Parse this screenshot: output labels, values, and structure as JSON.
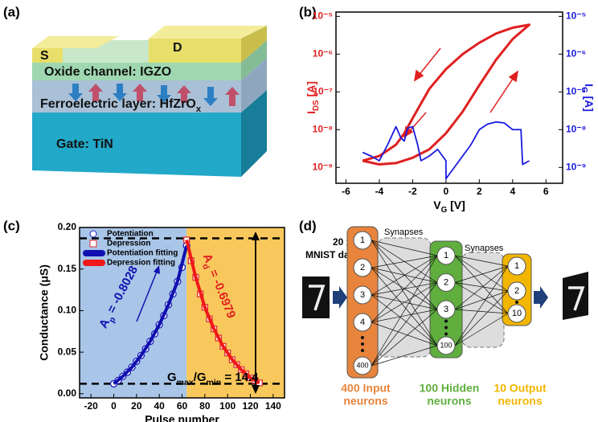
{
  "panels": [
    "(a)",
    "(b)",
    "(c)",
    "(d)"
  ],
  "device": {
    "source": "S",
    "drain": "D",
    "channel": "Oxide channel: IGZO",
    "ferroelectric": [
      "Ferroelectric layer: HfZrO",
      "x"
    ],
    "gate": "Gate: TiN"
  },
  "chart_data": [
    {
      "type": "line",
      "ylog": true,
      "y2log": true,
      "xlabel": [
        "V",
        "G",
        " [V]"
      ],
      "ylabel": [
        "I",
        "DS",
        " [A]"
      ],
      "y2label": [
        "I",
        "G",
        " [A]"
      ],
      "ylabel_color": "#e02020",
      "y2label_color": "#1a1ae0",
      "xlim": [
        -6.6,
        7
      ],
      "xticks": [
        -6,
        -4,
        -2,
        0,
        2,
        4,
        6
      ],
      "ylim": [
        3.8e-10,
        1.3e-05
      ],
      "yticks": [
        {
          "value": 1e-09,
          "label": "10⁻⁹"
        },
        {
          "value": 1e-08,
          "label": "10⁻⁸"
        },
        {
          "value": 1e-07,
          "label": "10⁻⁷"
        },
        {
          "value": 1e-06,
          "label": "10⁻⁶"
        },
        {
          "value": 1e-05,
          "label": "10⁻⁵"
        }
      ],
      "y2lim": [
        3.8e-10,
        1.3e-05
      ],
      "y2ticks": [
        {
          "value": 1e-09,
          "label": "10⁻⁹"
        },
        {
          "value": 1e-08,
          "label": "10⁻⁸"
        },
        {
          "value": 1e-07,
          "label": "10⁻⁷"
        },
        {
          "value": 1e-06,
          "label": "10⁻⁶"
        },
        {
          "value": 1e-05,
          "label": "10⁻⁵"
        }
      ],
      "series": [
        {
          "color": "#e02020",
          "x": [
            -5,
            -4,
            -3,
            -2,
            -1,
            0,
            1,
            2,
            3,
            4,
            5,
            4,
            3,
            2,
            1,
            0,
            -1,
            -2,
            -2.5,
            -3,
            -4,
            -5
          ],
          "values": [
            1.5e-09,
            1.2e-09,
            1.3e-09,
            1.8e-09,
            3e-09,
            8e-09,
            3e-08,
            1.5e-07,
            7e-07,
            2.5e-06,
            6e-06,
            5e-06,
            3.5e-06,
            2e-06,
            1e-06,
            4e-07,
            1.2e-07,
            2e-08,
            8e-09,
            4e-09,
            2e-09,
            1.5e-09
          ]
        },
        {
          "color": "#1a1ae0",
          "axis": "y2",
          "x": [
            -5,
            -4.5,
            -4,
            -3.5,
            -3,
            -2.7,
            -2.5,
            -2.3,
            -2,
            -1.7,
            -1.5,
            -1,
            -0.5,
            0,
            0,
            0.5,
            1,
            1.5,
            2,
            2.5,
            3,
            3.5,
            4,
            4.5,
            4.6,
            5
          ],
          "values": [
            2.5e-09,
            2e-09,
            1.5e-09,
            4e-09,
            1.2e-08,
            6e-09,
            5e-09,
            1.1e-08,
            1.2e-08,
            4e-09,
            1.5e-09,
            2e-09,
            3e-09,
            1.5e-09,
            5e-10,
            1e-09,
            2e-09,
            4e-09,
            1e-08,
            1.4e-08,
            1.6e-08,
            1.5e-08,
            1e-08,
            1e-08,
            1.2e-09,
            1.5e-09
          ]
        }
      ]
    },
    {
      "type": "scatter",
      "xlabel": "Pulse number",
      "ylabel": "Conductance (μS)",
      "xlim": [
        -30,
        150
      ],
      "xticks": [
        -20,
        0,
        20,
        40,
        60,
        80,
        100,
        120,
        140
      ],
      "ylim": [
        -0.005,
        0.2
      ],
      "yticks": [
        {
          "value": 0,
          "label": "0.00"
        },
        0.05,
        {
          "value": 0.1,
          "label": "0.10"
        },
        0.15,
        {
          "value": 0.2,
          "label": "0.20"
        }
      ],
      "regions": [
        {
          "xlim": [
            -30,
            64
          ],
          "color": "#a9c6e8"
        },
        {
          "xlim": [
            64,
            150
          ],
          "color": "#f8c85c"
        }
      ],
      "hlines": [
        0.187,
        0.012
      ],
      "annotations": [
        [
          "A",
          "p",
          " = -0.8028"
        ],
        [
          "A",
          "d",
          " = -0.6979"
        ],
        [
          "G",
          "max",
          "/G",
          "min",
          " = 14.4"
        ]
      ],
      "legend": "upper left",
      "series": [
        {
          "name": "Potentiation",
          "color": "#2020c0",
          "marker": "circle",
          "x": [
            0,
            4,
            8,
            12,
            16,
            20,
            24,
            28,
            32,
            36,
            40,
            44,
            48,
            52,
            56,
            60,
            64
          ],
          "values": [
            0.012,
            0.016,
            0.021,
            0.026,
            0.032,
            0.039,
            0.046,
            0.054,
            0.063,
            0.072,
            0.083,
            0.094,
            0.107,
            0.12,
            0.135,
            0.152,
            0.178
          ]
        },
        {
          "name": "Depression",
          "color": "#e03030",
          "marker": "square",
          "x": [
            64,
            68,
            72,
            76,
            80,
            84,
            88,
            92,
            96,
            100,
            104,
            108,
            112,
            116,
            120,
            124,
            128
          ],
          "values": [
            0.185,
            0.16,
            0.14,
            0.12,
            0.104,
            0.09,
            0.078,
            0.067,
            0.057,
            0.049,
            0.041,
            0.035,
            0.029,
            0.024,
            0.019,
            0.016,
            0.013
          ]
        },
        {
          "name": "Potentiation fitting",
          "color": "#1010b0",
          "marker": "line",
          "x": [
            0,
            8,
            16,
            24,
            32,
            40,
            48,
            56,
            64
          ],
          "values": [
            0.012,
            0.021,
            0.032,
            0.046,
            0.063,
            0.083,
            0.107,
            0.135,
            0.178
          ]
        },
        {
          "name": "Depression fitting",
          "color": "#f01818",
          "marker": "line",
          "x": [
            64,
            72,
            80,
            88,
            96,
            104,
            112,
            120,
            128
          ],
          "values": [
            0.185,
            0.14,
            0.104,
            0.078,
            0.057,
            0.041,
            0.029,
            0.019,
            0.013
          ]
        }
      ]
    }
  ],
  "network": {
    "data_label": [
      "20 x 20",
      "MNIST data"
    ],
    "synapses": [
      "Synapses",
      "Synapses"
    ],
    "layers": [
      {
        "nodes": [
          "1",
          "2",
          "3",
          "4",
          "400"
        ],
        "label": [
          "400 Input",
          "neurons"
        ],
        "color": "#e8843c"
      },
      {
        "nodes": [
          "1",
          "2",
          "3",
          "100"
        ],
        "label": [
          "100 Hidden",
          "neurons"
        ],
        "color": "#5fae3e"
      },
      {
        "nodes": [
          "1",
          "2",
          "10"
        ],
        "label": [
          "10 Output",
          "neurons"
        ],
        "color": "#f2b600"
      }
    ]
  }
}
